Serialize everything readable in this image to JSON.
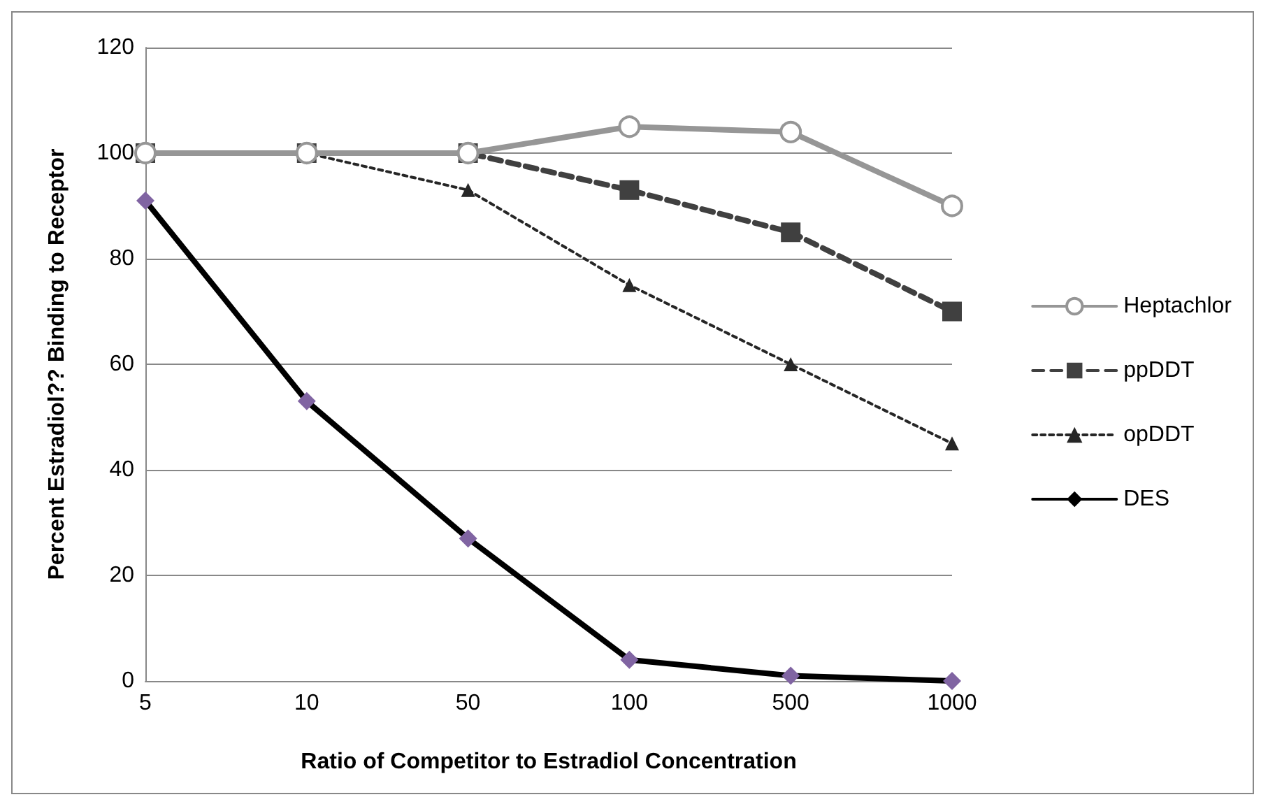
{
  "chart_data": {
    "type": "line",
    "xlabel": "Ratio of Competitor to Estradiol Concentration",
    "ylabel": "Percent Estradiol?? Binding to Receptor",
    "categories": [
      "5",
      "10",
      "50",
      "100",
      "500",
      "1000"
    ],
    "ylim": [
      0,
      120
    ],
    "yticks": [
      0,
      20,
      40,
      60,
      80,
      100,
      120
    ],
    "grid": "y",
    "legend": "right",
    "series": [
      {
        "name": "Heptachlor",
        "color": "#969696",
        "marker": "circle",
        "line_style": "solid",
        "values": [
          100,
          100,
          100,
          105,
          104,
          90
        ]
      },
      {
        "name": "ppDDT",
        "color": "#404040",
        "marker": "square",
        "line_style": "dashed",
        "values": [
          100,
          100,
          100,
          93,
          85,
          70
        ]
      },
      {
        "name": "opDDT",
        "color": "#262626",
        "marker": "triangle",
        "line_style": "dotted",
        "values": [
          100,
          100,
          93,
          75,
          60,
          45
        ]
      },
      {
        "name": "DES",
        "color": "#000000",
        "colors": [
          "#8064a2",
          "#8064a2",
          "#8064a2",
          "#8064a2",
          "#8064a2",
          "#8064a2"
        ],
        "marker": "diamond",
        "line_style": "solid",
        "values": [
          91,
          53,
          27,
          4,
          1,
          0
        ]
      }
    ]
  }
}
